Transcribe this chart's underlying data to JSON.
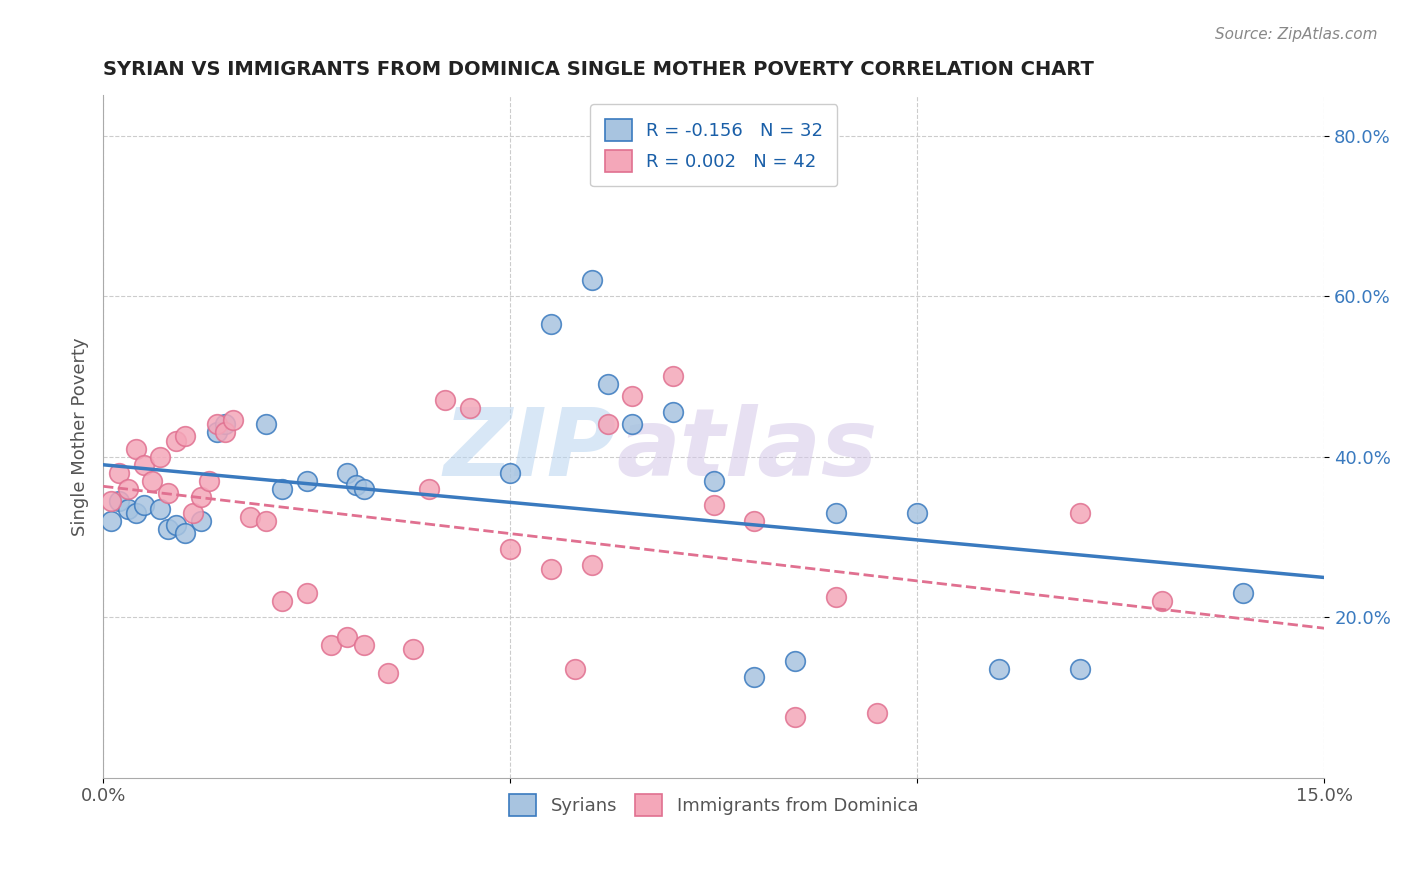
{
  "title": "SYRIAN VS IMMIGRANTS FROM DOMINICA SINGLE MOTHER POVERTY CORRELATION CHART",
  "source": "Source: ZipAtlas.com",
  "ylabel": "Single Mother Poverty",
  "xlim": [
    0.0,
    0.15
  ],
  "ylim": [
    0.0,
    0.85
  ],
  "watermark_zip": "ZIP",
  "watermark_atlas": "atlas",
  "legend_syrian_R": "R = -0.156",
  "legend_syrian_N": "N = 32",
  "legend_dominica_R": "R = 0.002",
  "legend_dominica_N": "N = 42",
  "syrian_color": "#a8c4e0",
  "dominica_color": "#f4a7b9",
  "syrian_line_color": "#3a7abf",
  "dominica_line_color": "#e07090",
  "background_color": "#ffffff",
  "grid_color": "#cccccc",
  "syrians_x": [
    0.001,
    0.002,
    0.003,
    0.004,
    0.005,
    0.007,
    0.008,
    0.009,
    0.01,
    0.012,
    0.014,
    0.015,
    0.02,
    0.022,
    0.025,
    0.03,
    0.031,
    0.032,
    0.05,
    0.055,
    0.06,
    0.062,
    0.065,
    0.07,
    0.075,
    0.08,
    0.085,
    0.09,
    0.1,
    0.11,
    0.12,
    0.14
  ],
  "syrians_y": [
    0.32,
    0.345,
    0.335,
    0.33,
    0.34,
    0.335,
    0.31,
    0.315,
    0.305,
    0.32,
    0.43,
    0.44,
    0.44,
    0.36,
    0.37,
    0.38,
    0.365,
    0.36,
    0.38,
    0.565,
    0.62,
    0.49,
    0.44,
    0.455,
    0.37,
    0.125,
    0.145,
    0.33,
    0.33,
    0.135,
    0.135,
    0.23
  ],
  "dominica_x": [
    0.001,
    0.002,
    0.003,
    0.004,
    0.005,
    0.006,
    0.007,
    0.008,
    0.009,
    0.01,
    0.011,
    0.012,
    0.013,
    0.014,
    0.015,
    0.016,
    0.018,
    0.02,
    0.022,
    0.025,
    0.028,
    0.03,
    0.032,
    0.035,
    0.038,
    0.04,
    0.042,
    0.045,
    0.05,
    0.055,
    0.058,
    0.06,
    0.062,
    0.065,
    0.07,
    0.075,
    0.08,
    0.085,
    0.09,
    0.095,
    0.12,
    0.13
  ],
  "dominica_y": [
    0.345,
    0.38,
    0.36,
    0.41,
    0.39,
    0.37,
    0.4,
    0.355,
    0.42,
    0.425,
    0.33,
    0.35,
    0.37,
    0.44,
    0.43,
    0.445,
    0.325,
    0.32,
    0.22,
    0.23,
    0.165,
    0.175,
    0.165,
    0.13,
    0.16,
    0.36,
    0.47,
    0.46,
    0.285,
    0.26,
    0.135,
    0.265,
    0.44,
    0.475,
    0.5,
    0.34,
    0.32,
    0.075,
    0.225,
    0.08,
    0.33,
    0.22
  ]
}
